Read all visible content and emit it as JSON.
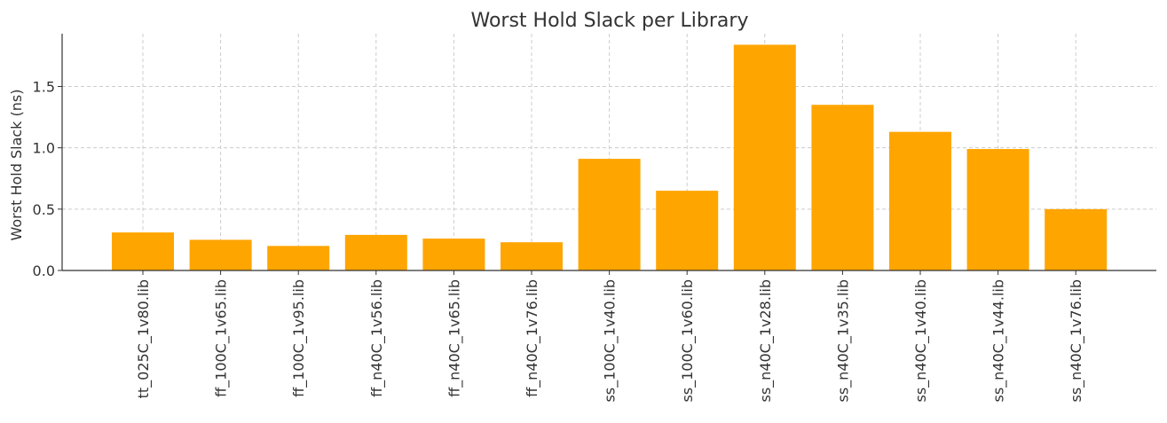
{
  "chart_data": {
    "type": "bar",
    "title": "Worst Hold Slack per Library",
    "xlabel": "",
    "ylabel": "Worst Hold Slack (ns)",
    "ylim": [
      0,
      1.93
    ],
    "yticks": [
      0.0,
      0.5,
      1.0,
      1.5
    ],
    "ytick_labels": [
      "0.0",
      "0.5",
      "1.0",
      "1.5"
    ],
    "grid": true,
    "bar_color": "#FFA500",
    "categories": [
      "tt_025C_1v80.lib",
      "ff_100C_1v65.lib",
      "ff_100C_1v95.lib",
      "ff_n40C_1v56.lib",
      "ff_n40C_1v65.lib",
      "ff_n40C_1v76.lib",
      "ss_100C_1v40.lib",
      "ss_100C_1v60.lib",
      "ss_n40C_1v28.lib",
      "ss_n40C_1v35.lib",
      "ss_n40C_1v40.lib",
      "ss_n40C_1v44.lib",
      "ss_n40C_1v76.lib"
    ],
    "values": [
      0.31,
      0.25,
      0.2,
      0.29,
      0.26,
      0.23,
      0.91,
      0.65,
      1.84,
      1.35,
      1.13,
      0.99,
      0.5
    ]
  }
}
